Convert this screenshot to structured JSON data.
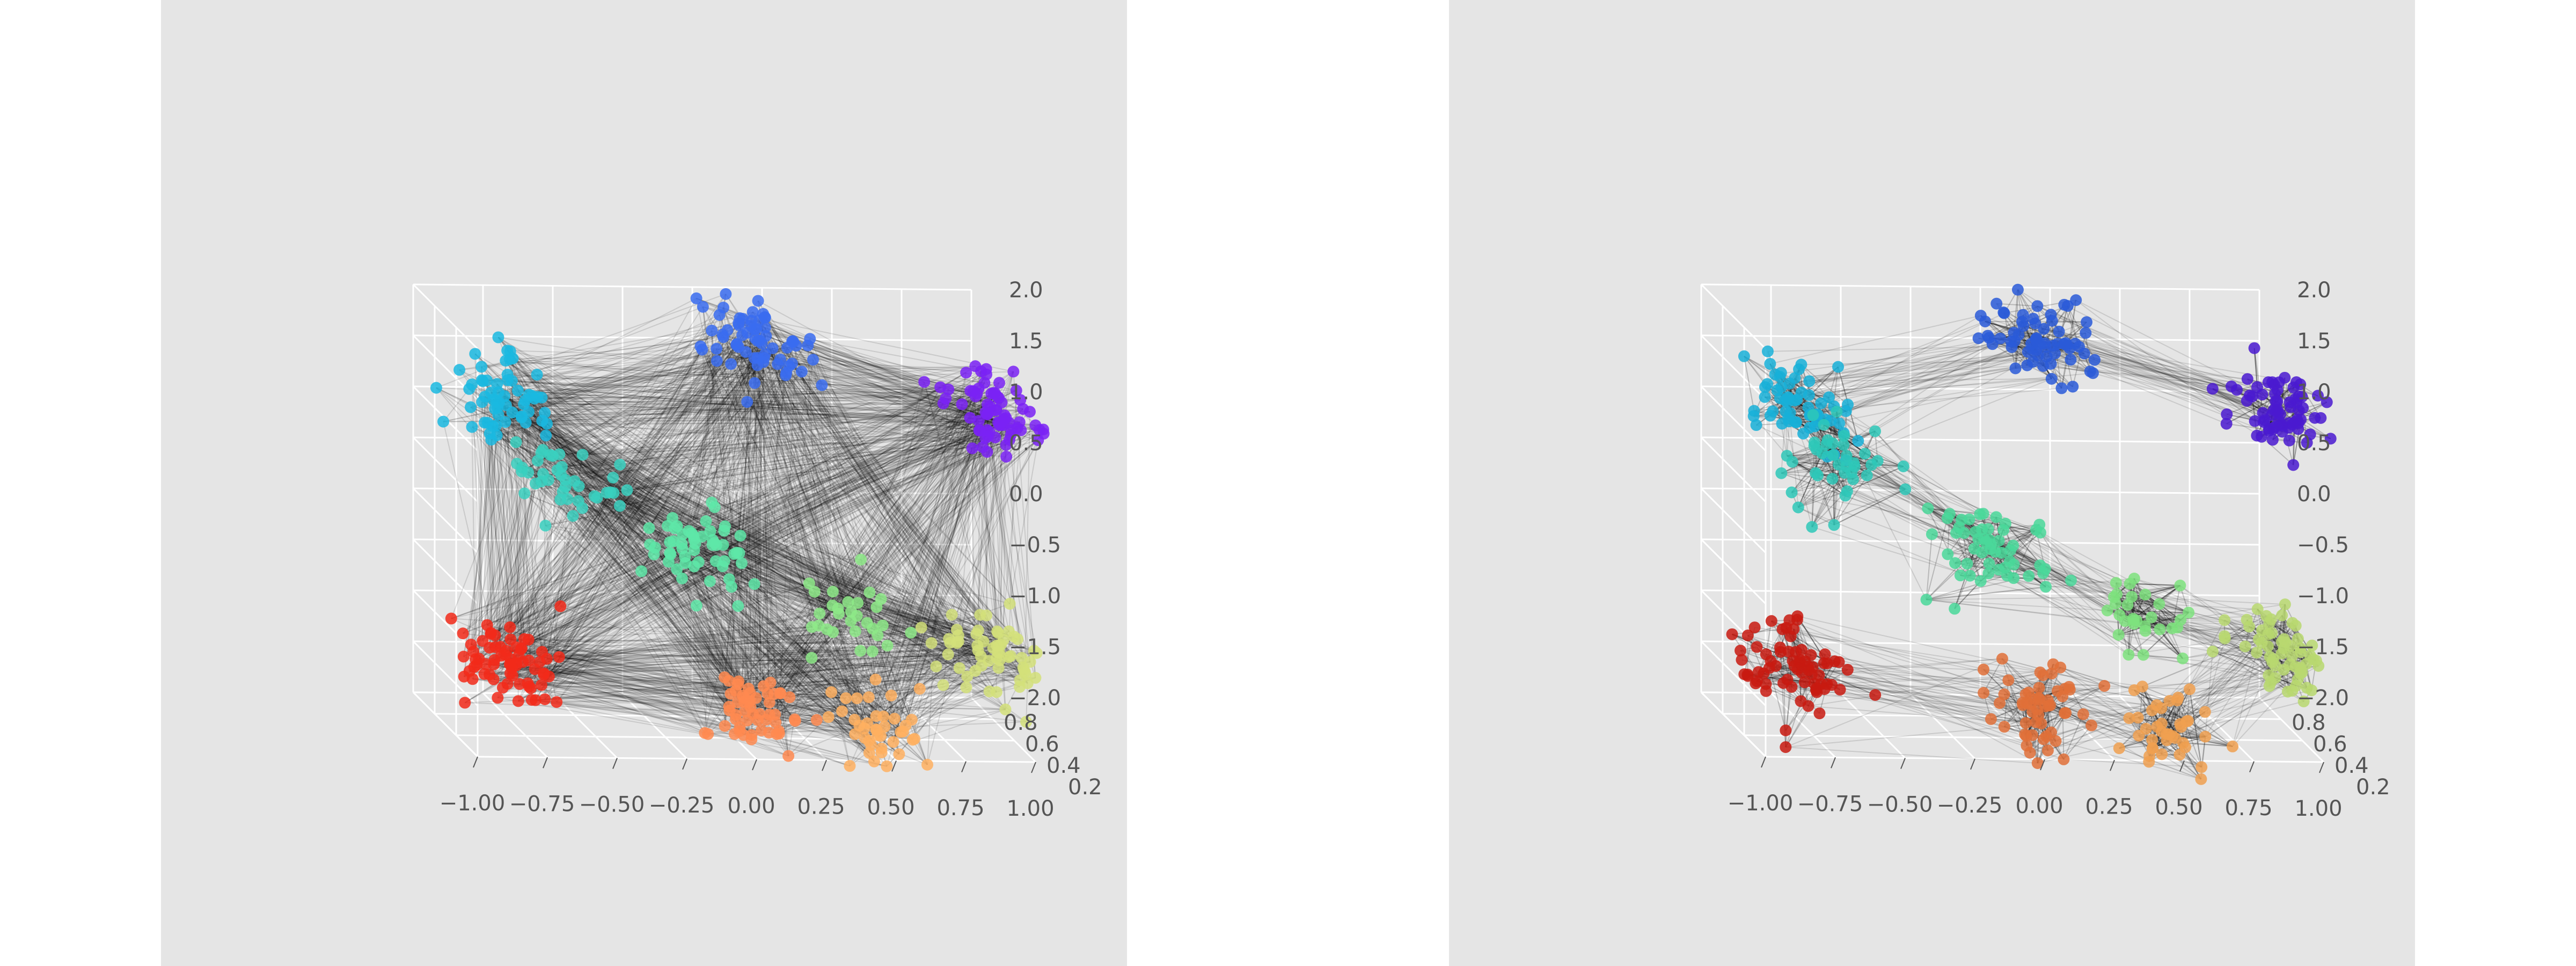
{
  "chart_data": [
    {
      "type": "scatter",
      "title": "",
      "xlabel": "",
      "ylabel": "",
      "zlabel": "",
      "xlim": [
        -1.0,
        1.0
      ],
      "ylim": [
        0.2,
        0.8
      ],
      "zlim": [
        -2.0,
        2.0
      ],
      "x_ticks": [
        "−1.00",
        "−0.75",
        "−0.50",
        "−0.25",
        "0.00",
        "0.25",
        "0.50",
        "0.75",
        "1.00"
      ],
      "y_ticks": [
        "0.2",
        "0.4",
        "0.6",
        "0.8"
      ],
      "z_ticks": [
        "−2.0",
        "−1.5",
        "−1.0",
        "−0.5",
        "0.0",
        "0.5",
        "1.0",
        "1.5",
        "2.0"
      ],
      "grid": true,
      "colormap": "rainbow",
      "edges": "dense",
      "clusters": [
        {
          "center": [
            0.95,
            0.45,
            1.2
          ],
          "color": "#7a22f5",
          "count": 70
        },
        {
          "center": [
            0.1,
            0.5,
            1.8
          ],
          "color": "#3a6cf0",
          "count": 65
        },
        {
          "center": [
            -0.8,
            0.5,
            1.2
          ],
          "color": "#1ab8e0",
          "count": 60
        },
        {
          "center": [
            -0.6,
            0.5,
            0.5
          ],
          "color": "#3ad0c0",
          "count": 40
        },
        {
          "center": [
            -0.1,
            0.5,
            -0.3
          ],
          "color": "#5ee8a8",
          "count": 55
        },
        {
          "center": [
            0.45,
            0.5,
            -0.95
          ],
          "color": "#8eea88",
          "count": 30
        },
        {
          "center": [
            0.95,
            0.45,
            -1.2
          ],
          "color": "#d4e07a",
          "count": 60
        },
        {
          "center": [
            0.55,
            0.5,
            -2.0
          ],
          "color": "#ffb060",
          "count": 40
        },
        {
          "center": [
            0.1,
            0.5,
            -1.8
          ],
          "color": "#ff8a50",
          "count": 55
        },
        {
          "center": [
            -0.8,
            0.5,
            -1.4
          ],
          "color": "#f22a1a",
          "count": 70
        }
      ]
    },
    {
      "type": "scatter",
      "title": "",
      "xlabel": "",
      "ylabel": "",
      "zlabel": "",
      "xlim": [
        -1.0,
        1.0
      ],
      "ylim": [
        0.2,
        0.8
      ],
      "zlim": [
        -2.0,
        2.0
      ],
      "x_ticks": [
        "−1.00",
        "−0.75",
        "−0.50",
        "−0.25",
        "0.00",
        "0.25",
        "0.50",
        "0.75",
        "1.00"
      ],
      "y_ticks": [
        "0.2",
        "0.4",
        "0.6",
        "0.8"
      ],
      "z_ticks": [
        "−2.0",
        "−1.5",
        "−1.0",
        "−0.5",
        "0.0",
        "0.5",
        "1.0",
        "1.5",
        "2.0"
      ],
      "grid": true,
      "colormap": "rainbow",
      "edges": "local",
      "clusters": [
        {
          "center": [
            0.95,
            0.45,
            1.2
          ],
          "color": "#4a1ad0",
          "count": 70
        },
        {
          "center": [
            0.1,
            0.5,
            1.8
          ],
          "color": "#2a5ad8",
          "count": 65
        },
        {
          "center": [
            -0.8,
            0.5,
            1.2
          ],
          "color": "#18b0d8",
          "count": 60
        },
        {
          "center": [
            -0.6,
            0.5,
            0.5
          ],
          "color": "#2ec8b8",
          "count": 40
        },
        {
          "center": [
            -0.1,
            0.5,
            -0.3
          ],
          "color": "#4ad89a",
          "count": 55
        },
        {
          "center": [
            0.45,
            0.5,
            -0.95
          ],
          "color": "#7ee27e",
          "count": 30
        },
        {
          "center": [
            0.95,
            0.45,
            -1.2
          ],
          "color": "#b8d870",
          "count": 60
        },
        {
          "center": [
            0.55,
            0.5,
            -2.0
          ],
          "color": "#f0a050",
          "count": 40
        },
        {
          "center": [
            0.1,
            0.5,
            -1.8
          ],
          "color": "#e07038",
          "count": 55
        },
        {
          "center": [
            -0.8,
            0.5,
            -1.4
          ],
          "color": "#c81a10",
          "count": 70
        }
      ]
    }
  ]
}
